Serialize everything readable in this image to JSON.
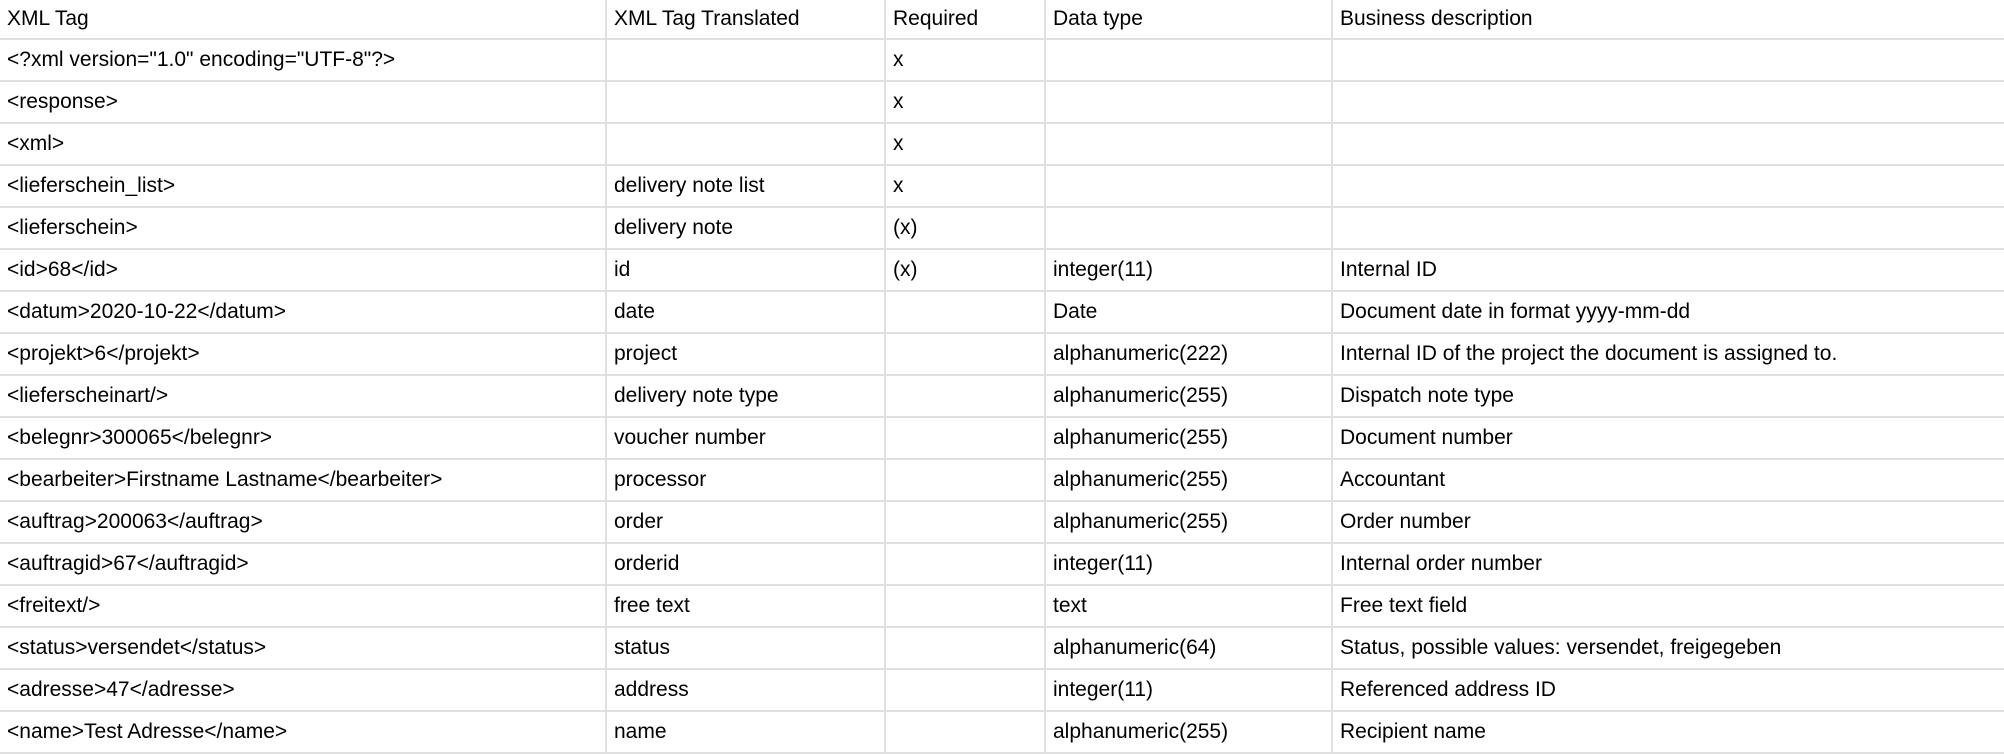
{
  "colors": {
    "border": "#e0e0e0",
    "text": "#000000",
    "background": "#ffffff"
  },
  "table": {
    "columns": [
      {
        "key": "xml-tag",
        "label": "XML Tag"
      },
      {
        "key": "xml-tag-translated",
        "label": "XML Tag Translated"
      },
      {
        "key": "required",
        "label": "Required"
      },
      {
        "key": "data-type",
        "label": "Data type"
      },
      {
        "key": "business-description",
        "label": "Business description"
      }
    ],
    "rows": [
      [
        "<?xml version=\"1.0\" encoding=\"UTF-8\"?>",
        "",
        "x",
        "",
        ""
      ],
      [
        "<response>",
        "",
        "x",
        "",
        ""
      ],
      [
        "<xml>",
        "",
        "x",
        "",
        ""
      ],
      [
        "<lieferschein_list>",
        "delivery note list",
        "x",
        "",
        ""
      ],
      [
        "<lieferschein>",
        "delivery note",
        "(x)",
        "",
        ""
      ],
      [
        "<id>68</id>",
        "id",
        "(x)",
        "integer(11)",
        "Internal ID"
      ],
      [
        "<datum>2020-10-22</datum>",
        "date",
        "",
        "Date",
        "Document date in format yyyy-mm-dd"
      ],
      [
        "<projekt>6</projekt>",
        "project",
        "",
        "alphanumeric(222)",
        "Internal ID of the project the document is assigned to."
      ],
      [
        "<lieferscheinart/>",
        "delivery note type",
        "",
        "alphanumeric(255)",
        "Dispatch note type"
      ],
      [
        "<belegnr>300065</belegnr>",
        "voucher number",
        "",
        "alphanumeric(255)",
        "Document number"
      ],
      [
        "<bearbeiter>Firstname Lastname</bearbeiter>",
        "processor",
        "",
        "alphanumeric(255)",
        "Accountant"
      ],
      [
        "<auftrag>200063</auftrag>",
        "order",
        "",
        "alphanumeric(255)",
        "Order number"
      ],
      [
        "<auftragid>67</auftragid>",
        "orderid",
        "",
        "integer(11)",
        "Internal order number"
      ],
      [
        "<freitext/>",
        "free text",
        "",
        "text",
        "Free text field"
      ],
      [
        "<status>versendet</status>",
        "status",
        "",
        "alphanumeric(64)",
        "Status, possible values: versendet, freigegeben"
      ],
      [
        "<adresse>47</adresse>",
        "address",
        "",
        "integer(11)",
        "Referenced address ID"
      ],
      [
        "<name>Test Adresse</name>",
        "name",
        "",
        "alphanumeric(255)",
        "Recipient name"
      ]
    ]
  }
}
